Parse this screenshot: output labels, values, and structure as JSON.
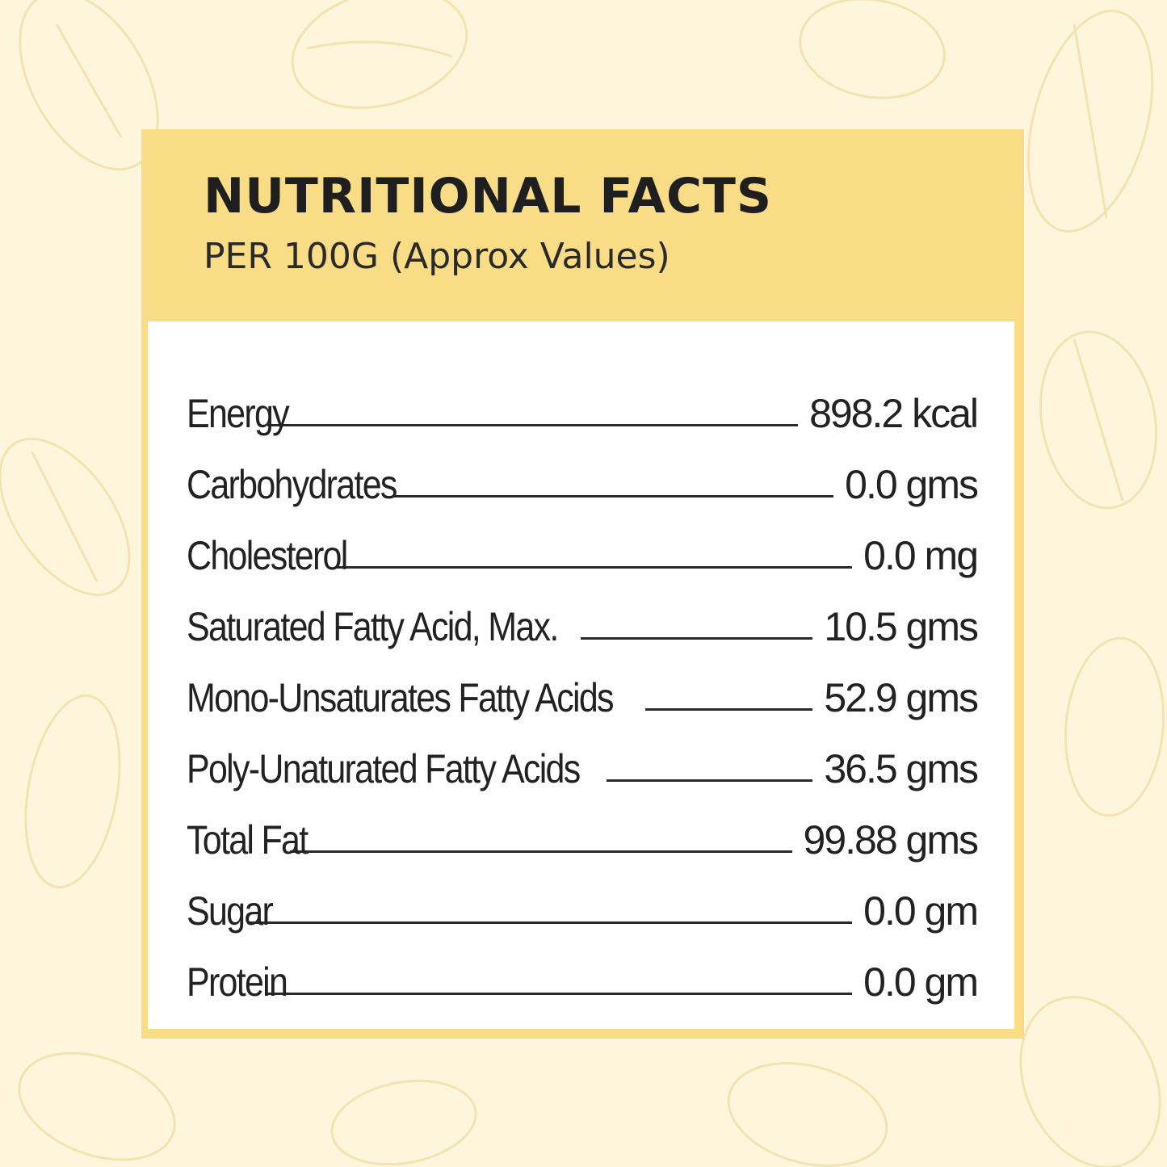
{
  "header": {
    "title": "NUTRITIONAL FACTS",
    "subtitle": "PER 100G (Approx Values)"
  },
  "nutrients": [
    {
      "label": "Energy",
      "value": "898.2 kcal"
    },
    {
      "label": "Carbohydrates",
      "value": "0.0 gms"
    },
    {
      "label": "Cholesterol",
      "value": "0.0 mg"
    },
    {
      "label": "Saturated Fatty Acid, Max.",
      "value": "10.5 gms"
    },
    {
      "label": "Mono-Unsaturates Fatty Acids",
      "value": "52.9 gms"
    },
    {
      "label": "Poly-Unaturated Fatty Acids",
      "value": "36.5 gms"
    },
    {
      "label": "Total Fat",
      "value": "99.88 gms"
    },
    {
      "label": "Sugar",
      "value": "0.0 gm"
    },
    {
      "label": "Protein",
      "value": "0.0 gm"
    }
  ],
  "colors": {
    "background": "#fdf6dc",
    "header_band": "#f9dc86",
    "panel_body": "#ffffff",
    "text": "#222222",
    "pattern_stroke": "#f2e3b0"
  },
  "background_icons": [
    "almond-icon"
  ]
}
